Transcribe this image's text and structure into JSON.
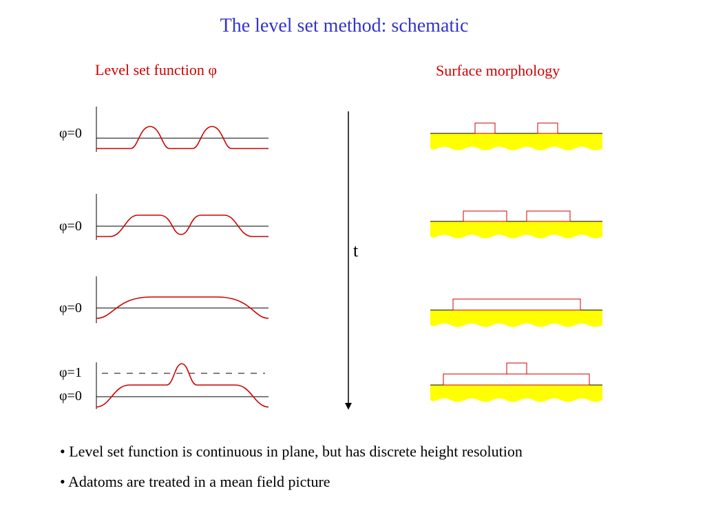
{
  "title": "The level set method: schematic",
  "headers": {
    "left": "Level set function φ",
    "right": "Surface morphology"
  },
  "phi_labels": {
    "row1": "φ=0",
    "row2": "φ=0",
    "row3": "φ=0",
    "row4_top": "φ=1",
    "row4_bottom": "φ=0"
  },
  "time_axis_label": "t",
  "bullets": [
    "• Level set function is continuous in plane, but has discrete height resolution",
    "• Adatoms are treated in a mean field picture"
  ],
  "colors": {
    "title": "#3333cc",
    "header": "#cc0000",
    "curve": "#cc0000",
    "substrate": "#ffff00"
  }
}
